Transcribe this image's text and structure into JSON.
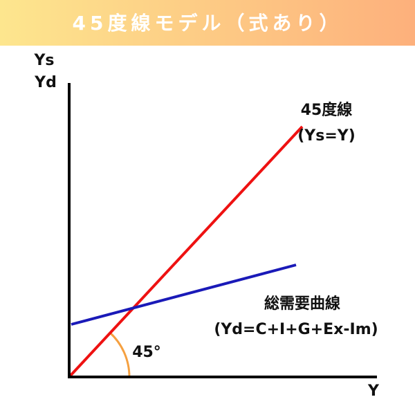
{
  "header": {
    "title": "45度線モデル（式あり）"
  },
  "axes": {
    "y_label_1": "Ys",
    "y_label_2": "Yd",
    "x_label": "Y"
  },
  "lines": [
    {
      "label": "45度線",
      "formula": "(Ys=Y)"
    },
    {
      "label": "総需要曲線",
      "formula": "(Yd=C+I+G+Ex-Im)"
    }
  ],
  "angle_label": "45°"
}
